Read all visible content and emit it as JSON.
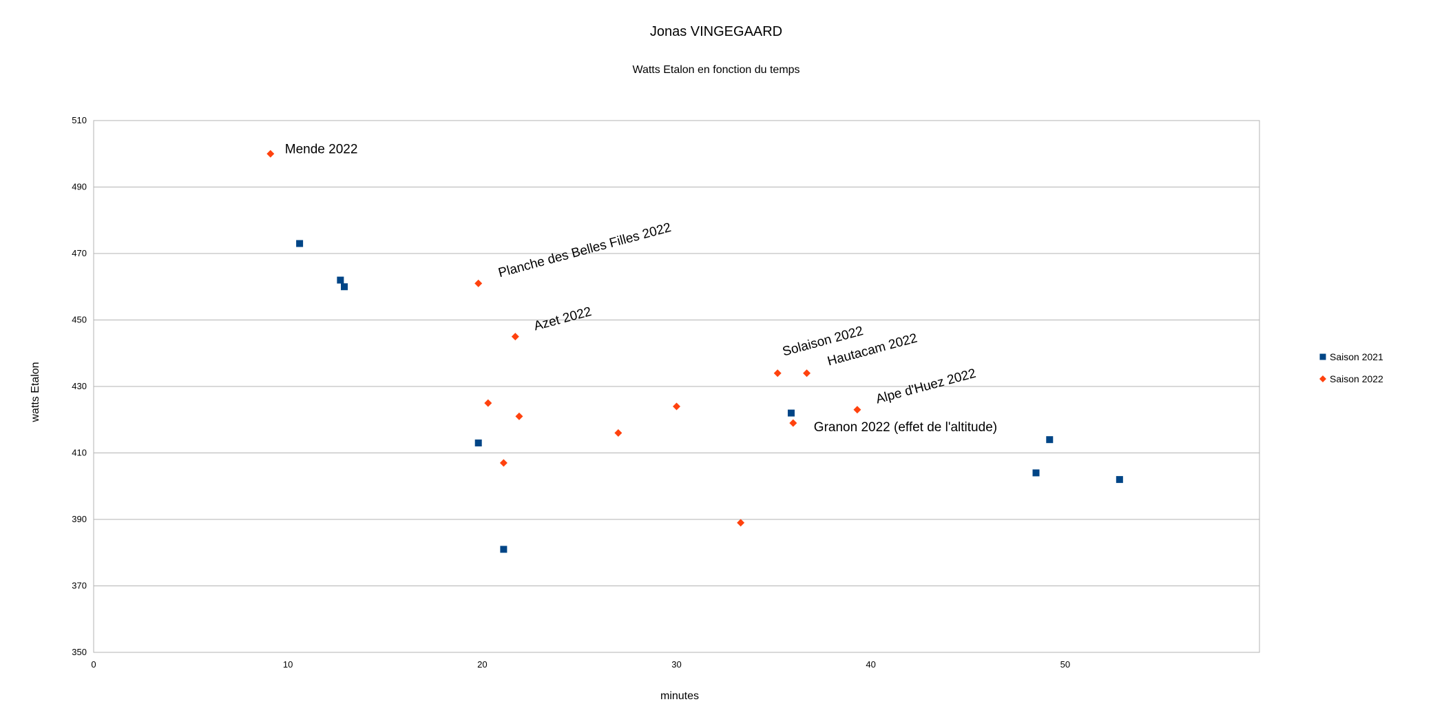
{
  "chart_data": {
    "type": "scatter",
    "title": "Jonas VINGEGAARD",
    "subtitle": "Watts Etalon en fonction du temps",
    "xlabel": "minutes",
    "ylabel": "watts Etalon",
    "xlim": [
      0,
      60
    ],
    "ylim": [
      350,
      510
    ],
    "xticks": [
      0,
      10,
      20,
      30,
      40,
      50
    ],
    "yticks": [
      350,
      370,
      390,
      410,
      430,
      450,
      470,
      490,
      510
    ],
    "grid": "horizontal",
    "legend_position": "right",
    "series": [
      {
        "name": "Saison 2021",
        "marker": "square",
        "color": "#004586",
        "points": [
          {
            "x": 10.6,
            "y": 473
          },
          {
            "x": 12.7,
            "y": 462
          },
          {
            "x": 12.9,
            "y": 460
          },
          {
            "x": 19.8,
            "y": 413
          },
          {
            "x": 21.1,
            "y": 381
          },
          {
            "x": 35.9,
            "y": 422
          },
          {
            "x": 48.5,
            "y": 404
          },
          {
            "x": 49.2,
            "y": 414
          },
          {
            "x": 52.8,
            "y": 402
          }
        ]
      },
      {
        "name": "Saison 2022",
        "marker": "diamond",
        "color": "#ff420e",
        "points": [
          {
            "x": 9.1,
            "y": 500
          },
          {
            "x": 19.8,
            "y": 461
          },
          {
            "x": 20.3,
            "y": 425
          },
          {
            "x": 21.1,
            "y": 407
          },
          {
            "x": 21.7,
            "y": 445
          },
          {
            "x": 21.9,
            "y": 421
          },
          {
            "x": 27.0,
            "y": 416
          },
          {
            "x": 30.0,
            "y": 424
          },
          {
            "x": 33.3,
            "y": 389
          },
          {
            "x": 35.2,
            "y": 434
          },
          {
            "x": 36.0,
            "y": 419
          },
          {
            "x": 36.7,
            "y": 434
          },
          {
            "x": 39.3,
            "y": 423
          }
        ]
      }
    ],
    "annotations": [
      {
        "text": "Mende 2022",
        "x": 9.1,
        "y": 500,
        "rotation": 0
      },
      {
        "text": "Planche des Belles Filles 2022",
        "x": 19.8,
        "y": 461,
        "rotation": -15
      },
      {
        "text": "Azet 2022",
        "x": 21.7,
        "y": 445,
        "rotation": -15
      },
      {
        "text": "Solaison 2022",
        "x": 35.2,
        "y": 434,
        "rotation": -15
      },
      {
        "text": "Hautacam 2022",
        "x": 36.7,
        "y": 434,
        "rotation": -15
      },
      {
        "text": "Alpe d'Huez 2022",
        "x": 39.3,
        "y": 423,
        "rotation": -15
      },
      {
        "text": "Granon 2022 (effet de l'altitude)",
        "x": 36.0,
        "y": 419,
        "rotation": 0
      }
    ]
  }
}
